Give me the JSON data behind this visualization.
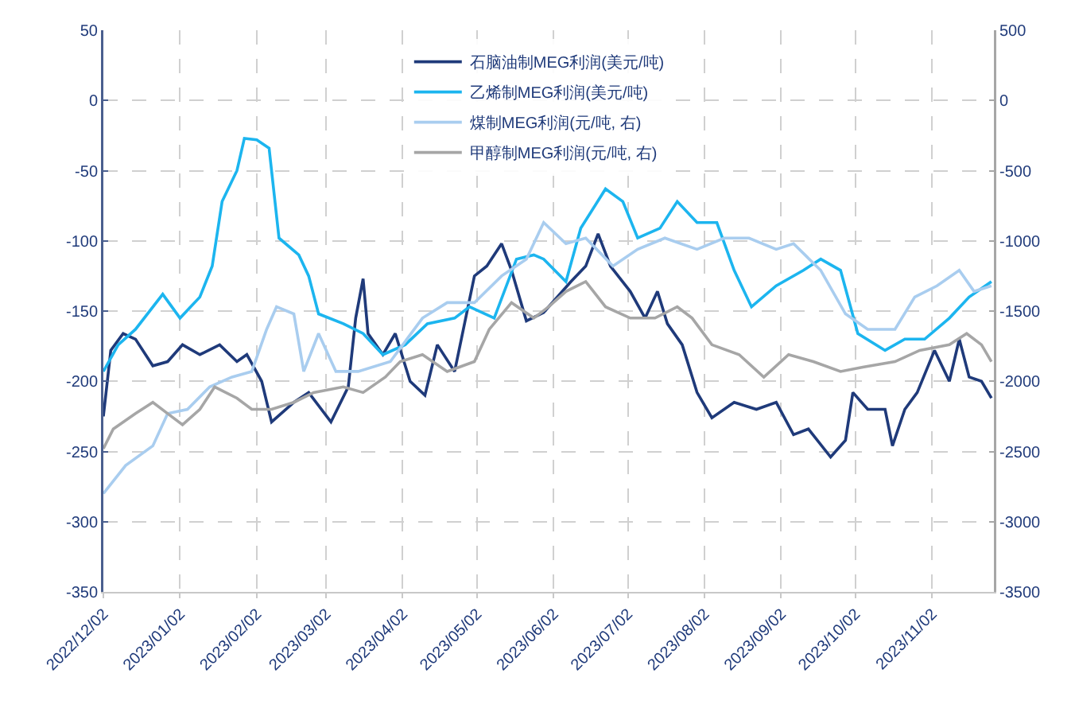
{
  "chart_data": {
    "type": "line",
    "legend": "top",
    "grid": true,
    "marker": "none",
    "line_style": "solid",
    "xlim": [
      "2022-12-02",
      "2023-11-27"
    ],
    "xticks": [
      {
        "value": "2022-12-02",
        "label": "2022/12/02"
      },
      {
        "value": "2023-01-02",
        "label": "2023/01/02"
      },
      {
        "value": "2023-02-02",
        "label": "2023/02/02"
      },
      {
        "value": "2023-03-02",
        "label": "2023/03/02"
      },
      {
        "value": "2023-04-02",
        "label": "2023/04/02"
      },
      {
        "value": "2023-05-02",
        "label": "2023/05/02"
      },
      {
        "value": "2023-06-02",
        "label": "2023/06/02"
      },
      {
        "value": "2023-07-02",
        "label": "2023/07/02"
      },
      {
        "value": "2023-08-02",
        "label": "2023/08/02"
      },
      {
        "value": "2023-09-02",
        "label": "2023/09/02"
      },
      {
        "value": "2023-10-02",
        "label": "2023/10/02"
      },
      {
        "value": "2023-11-02",
        "label": "2023/11/02"
      }
    ],
    "ylim": [
      -350,
      50
    ],
    "yticks": [
      -350,
      -300,
      -250,
      -200,
      -150,
      -100,
      -50,
      0,
      50
    ],
    "y2lim": [
      -3500,
      500
    ],
    "y2ticks": [
      -3500,
      -3000,
      -2500,
      -2000,
      -1500,
      -1000,
      -500,
      0,
      500
    ],
    "series": [
      {
        "name": "石脑油制MEG利润(美元/吨)",
        "color": "#1f3a7a",
        "x": [
          "2022-12-02",
          "2022-12-05",
          "2022-12-10",
          "2022-12-15",
          "2022-12-22",
          "2022-12-28",
          "2023-01-03",
          "2023-01-10",
          "2023-01-18",
          "2023-01-25",
          "2023-01-29",
          "2023-02-04",
          "2023-02-08",
          "2023-02-17",
          "2023-02-23",
          "2023-03-04",
          "2023-03-11",
          "2023-03-14",
          "2023-03-17",
          "2023-03-19",
          "2023-03-25",
          "2023-03-30",
          "2023-04-05",
          "2023-04-11",
          "2023-04-16",
          "2023-04-23",
          "2023-05-01",
          "2023-05-06",
          "2023-05-12",
          "2023-05-16",
          "2023-05-22",
          "2023-05-29",
          "2023-06-09",
          "2023-06-15",
          "2023-06-20",
          "2023-06-25",
          "2023-07-03",
          "2023-07-09",
          "2023-07-14",
          "2023-07-18",
          "2023-07-24",
          "2023-07-30",
          "2023-08-05",
          "2023-08-14",
          "2023-08-23",
          "2023-08-31",
          "2023-09-07",
          "2023-09-13",
          "2023-09-22",
          "2023-09-28",
          "2023-10-01",
          "2023-10-07",
          "2023-10-14",
          "2023-10-17",
          "2023-10-22",
          "2023-10-27",
          "2023-11-03",
          "2023-11-09",
          "2023-11-13",
          "2023-11-17",
          "2023-11-22",
          "2023-11-26"
        ],
        "values": [
          -225,
          -178,
          -166,
          -170,
          -189,
          -186,
          -174,
          -181,
          -174,
          -186,
          -181,
          -200,
          -229,
          -215,
          -208,
          -229,
          -204,
          -155,
          -127,
          -166,
          -181,
          -166,
          -200,
          -210,
          -174,
          -193,
          -125,
          -118,
          -102,
          -121,
          -157,
          -151,
          -129,
          -118,
          -95,
          -118,
          -136,
          -155,
          -136,
          -159,
          -174,
          -208,
          -226,
          -215,
          -220,
          -215,
          -238,
          -234,
          -254,
          -242,
          -208,
          -220,
          -220,
          -246,
          -220,
          -208,
          -178,
          -200,
          -170,
          -197,
          -200,
          -212
        ]
      },
      {
        "name": "乙烯制MEG利润(美元/吨)",
        "color": "#1cb5ef",
        "x": [
          "2022-12-02",
          "2022-12-08",
          "2022-12-15",
          "2022-12-26",
          "2023-01-02",
          "2023-01-10",
          "2023-01-15",
          "2023-01-19",
          "2023-01-25",
          "2023-01-28",
          "2023-02-02",
          "2023-02-07",
          "2023-02-11",
          "2023-02-19",
          "2023-02-23",
          "2023-02-27",
          "2023-03-09",
          "2023-03-17",
          "2023-03-25",
          "2023-04-03",
          "2023-04-12",
          "2023-04-23",
          "2023-04-29",
          "2023-05-09",
          "2023-05-18",
          "2023-05-25",
          "2023-05-29",
          "2023-06-07",
          "2023-06-13",
          "2023-06-23",
          "2023-06-30",
          "2023-07-06",
          "2023-07-15",
          "2023-07-22",
          "2023-07-30",
          "2023-08-07",
          "2023-08-14",
          "2023-08-21",
          "2023-08-31",
          "2023-09-11",
          "2023-09-18",
          "2023-09-26",
          "2023-10-03",
          "2023-10-14",
          "2023-10-22",
          "2023-10-30",
          "2023-11-09",
          "2023-11-17",
          "2023-11-26"
        ],
        "values": [
          -193,
          -174,
          -163,
          -138,
          -155,
          -140,
          -118,
          -72,
          -50,
          -27,
          -28,
          -34,
          -98,
          -110,
          -125,
          -152,
          -159,
          -166,
          -181,
          -174,
          -159,
          -155,
          -147,
          -155,
          -113,
          -110,
          -113,
          -129,
          -91,
          -63,
          -72,
          -98,
          -91,
          -72,
          -87,
          -87,
          -121,
          -147,
          -132,
          -121,
          -113,
          -121,
          -166,
          -178,
          -170,
          -170,
          -155,
          -140,
          -129
        ]
      },
      {
        "name": "煤制MEG利润(元/吨, 右)",
        "color": "#a9cdef",
        "axis": "y2",
        "x": [
          "2022-12-02",
          "2022-12-11",
          "2022-12-22",
          "2022-12-28",
          "2023-01-05",
          "2023-01-14",
          "2023-01-23",
          "2023-01-31",
          "2023-02-06",
          "2023-02-10",
          "2023-02-17",
          "2023-02-21",
          "2023-02-27",
          "2023-03-06",
          "2023-03-15",
          "2023-03-28",
          "2023-04-10",
          "2023-04-20",
          "2023-05-01",
          "2023-05-12",
          "2023-05-22",
          "2023-05-29",
          "2023-06-07",
          "2023-06-15",
          "2023-06-26",
          "2023-07-06",
          "2023-07-17",
          "2023-07-30",
          "2023-08-10",
          "2023-08-20",
          "2023-08-31",
          "2023-09-07",
          "2023-09-18",
          "2023-09-28",
          "2023-10-07",
          "2023-10-18",
          "2023-10-26",
          "2023-11-04",
          "2023-11-13",
          "2023-11-19",
          "2023-11-26"
        ],
        "values": [
          -2800,
          -2600,
          -2460,
          -2230,
          -2200,
          -2040,
          -1970,
          -1930,
          -1630,
          -1470,
          -1520,
          -1930,
          -1660,
          -1930,
          -1930,
          -1860,
          -1550,
          -1440,
          -1440,
          -1250,
          -1130,
          -870,
          -1020,
          -980,
          -1180,
          -1060,
          -980,
          -1060,
          -980,
          -980,
          -1060,
          -1020,
          -1210,
          -1520,
          -1630,
          -1630,
          -1400,
          -1320,
          -1210,
          -1360,
          -1320
        ]
      },
      {
        "name": "甲醇制MEG利润(元/吨, 右)",
        "color": "#a6a6a6",
        "axis": "y2",
        "x": [
          "2022-12-02",
          "2022-12-06",
          "2022-12-15",
          "2022-12-22",
          "2022-12-28",
          "2023-01-03",
          "2023-01-10",
          "2023-01-16",
          "2023-01-25",
          "2023-01-31",
          "2023-02-08",
          "2023-02-17",
          "2023-02-25",
          "2023-03-09",
          "2023-03-17",
          "2023-03-26",
          "2023-04-01",
          "2023-04-10",
          "2023-04-20",
          "2023-05-01",
          "2023-05-07",
          "2023-05-16",
          "2023-05-25",
          "2023-05-31",
          "2023-06-07",
          "2023-06-15",
          "2023-06-23",
          "2023-07-03",
          "2023-07-13",
          "2023-07-22",
          "2023-07-28",
          "2023-08-05",
          "2023-08-16",
          "2023-08-26",
          "2023-09-05",
          "2023-09-15",
          "2023-09-26",
          "2023-10-05",
          "2023-10-18",
          "2023-10-28",
          "2023-11-09",
          "2023-11-16",
          "2023-11-22",
          "2023-11-26"
        ],
        "values": [
          -2480,
          -2340,
          -2230,
          -2150,
          -2230,
          -2310,
          -2200,
          -2040,
          -2120,
          -2200,
          -2200,
          -2150,
          -2080,
          -2040,
          -2080,
          -1970,
          -1860,
          -1810,
          -1930,
          -1860,
          -1630,
          -1440,
          -1550,
          -1470,
          -1360,
          -1290,
          -1470,
          -1550,
          -1550,
          -1470,
          -1550,
          -1740,
          -1810,
          -1970,
          -1810,
          -1860,
          -1930,
          -1900,
          -1860,
          -1780,
          -1740,
          -1660,
          -1740,
          -1860
        ]
      }
    ]
  }
}
